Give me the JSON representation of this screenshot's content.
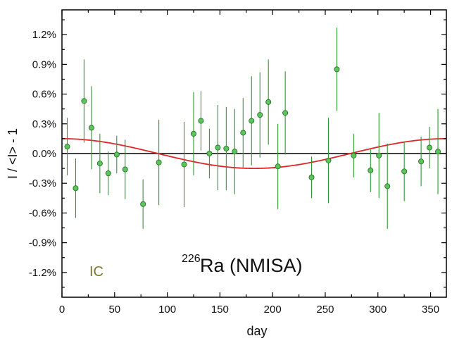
{
  "chart_data": {
    "type": "scatter",
    "xlabel": "day",
    "ylabel": "I / <I> - 1",
    "xlim": [
      0,
      365
    ],
    "ylim": [
      -1.45,
      1.45
    ],
    "x_ticks": [
      0,
      50,
      100,
      150,
      200,
      250,
      300,
      350
    ],
    "y_ticks": [
      1.2,
      0.9,
      0.6,
      0.3,
      0.0,
      -0.3,
      -0.6,
      -0.9,
      -1.2
    ],
    "y_tick_labels": [
      "1.2%",
      "0.9%",
      "0.6%",
      "0.3%",
      "0.0%",
      "-0.3%",
      "-0.6%",
      "-0.9%",
      "-1.2%"
    ],
    "grid": false,
    "series": [
      {
        "kind": "points_with_error_bars",
        "color": "#2d9a2d",
        "marker_fill": "#5cc45c",
        "points": [
          {
            "x": 5,
            "y": 0.07,
            "err": 0.29
          },
          {
            "x": 13,
            "y": -0.35,
            "err": 0.3
          },
          {
            "x": 21,
            "y": 0.53,
            "err": 0.42
          },
          {
            "x": 28,
            "y": 0.26,
            "err": 0.42
          },
          {
            "x": 36,
            "y": -0.1,
            "err": 0.3
          },
          {
            "x": 44,
            "y": -0.2,
            "err": 0.22
          },
          {
            "x": 52,
            "y": -0.01,
            "err": 0.19
          },
          {
            "x": 60,
            "y": -0.16,
            "err": 0.3
          },
          {
            "x": 77,
            "y": -0.51,
            "err": 0.25
          },
          {
            "x": 92,
            "y": -0.09,
            "err": 0.43
          },
          {
            "x": 116,
            "y": -0.11,
            "err": 0.43
          },
          {
            "x": 125,
            "y": 0.2,
            "err": 0.42
          },
          {
            "x": 132,
            "y": 0.33,
            "err": 0.3
          },
          {
            "x": 140,
            "y": 0.0,
            "err": 0.25
          },
          {
            "x": 148,
            "y": 0.06,
            "err": 0.43
          },
          {
            "x": 156,
            "y": 0.05,
            "err": 0.42
          },
          {
            "x": 164,
            "y": 0.02,
            "err": 0.43
          },
          {
            "x": 172,
            "y": 0.21,
            "err": 0.35
          },
          {
            "x": 180,
            "y": 0.33,
            "err": 0.45
          },
          {
            "x": 188,
            "y": 0.39,
            "err": 0.43
          },
          {
            "x": 196,
            "y": 0.52,
            "err": 0.43
          },
          {
            "x": 205,
            "y": -0.13,
            "err": 0.43
          },
          {
            "x": 212,
            "y": 0.41,
            "err": 0.42
          },
          {
            "x": 237,
            "y": -0.24,
            "err": 0.21
          },
          {
            "x": 253,
            "y": -0.07,
            "err": 0.43
          },
          {
            "x": 261,
            "y": 0.85,
            "err": 0.42
          },
          {
            "x": 277,
            "y": -0.02,
            "err": 0.22
          },
          {
            "x": 293,
            "y": -0.17,
            "err": 0.22
          },
          {
            "x": 301,
            "y": -0.02,
            "err": 0.43
          },
          {
            "x": 309,
            "y": -0.33,
            "err": 0.43
          },
          {
            "x": 325,
            "y": -0.18,
            "err": 0.3
          },
          {
            "x": 341,
            "y": -0.08,
            "err": 0.25
          },
          {
            "x": 349,
            "y": 0.06,
            "err": 0.21
          },
          {
            "x": 357,
            "y": 0.02,
            "err": 0.43
          }
        ]
      },
      {
        "kind": "fit_curve",
        "color": "#e0262a",
        "amplitude": 0.15,
        "period_days": 365,
        "phase_day": 0
      },
      {
        "kind": "zero_line",
        "color": "#000000",
        "y": 0.0
      }
    ],
    "annotations": [
      {
        "id": "ic",
        "text": "IC"
      },
      {
        "id": "isotope",
        "superscript": "226",
        "text": "Ra (NMISA)"
      }
    ]
  }
}
